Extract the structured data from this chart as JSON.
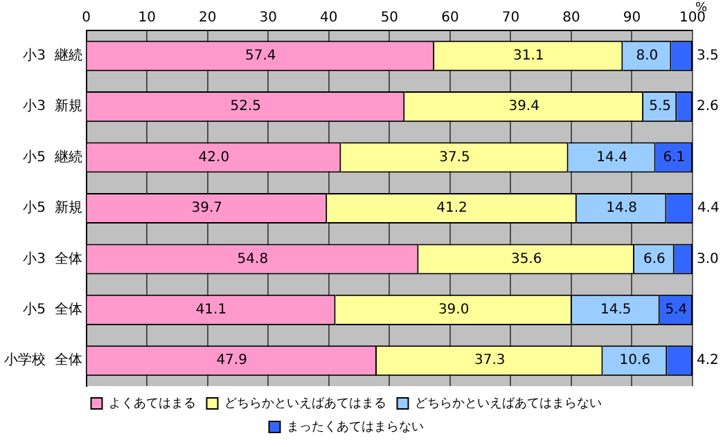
{
  "chart_data": {
    "type": "bar",
    "orientation": "horizontal",
    "stacked": true,
    "xlabel": "%",
    "categories": [
      "小3  継続",
      "小3  新規",
      "小5  継続",
      "小5  新規",
      "小3  全体",
      "小5  全体",
      "小学校  全体"
    ],
    "series": [
      {
        "name": "よくあてはまる",
        "color": "#ff99cc",
        "values": [
          57.4,
          52.5,
          42.0,
          39.7,
          54.8,
          41.1,
          47.9
        ],
        "value_labels": [
          "57.4",
          "52.5",
          "42.0",
          "39.7",
          "54.8",
          "41.1",
          "47.9"
        ]
      },
      {
        "name": "どちらかといえばあてはまる",
        "color": "#ffff99",
        "values": [
          31.1,
          39.4,
          37.5,
          41.2,
          35.6,
          39.0,
          37.3
        ],
        "value_labels": [
          "31.1",
          "39.4",
          "37.5",
          "41.2",
          "35.6",
          "39.0",
          "37.3"
        ]
      },
      {
        "name": "どちらかといえばあてはまらない",
        "color": "#99ccff",
        "values": [
          8.0,
          5.5,
          14.4,
          14.8,
          6.6,
          14.5,
          10.6
        ],
        "value_labels": [
          "8.0",
          "5.5",
          "14.4",
          "14.8",
          "6.6",
          "14.5",
          "10.6"
        ]
      },
      {
        "name": "まったくあてはまらない",
        "color": "#3366ff",
        "values": [
          3.5,
          2.6,
          6.1,
          4.4,
          3.0,
          5.4,
          4.2
        ],
        "value_labels": [
          "3.5",
          "2.6",
          "6.1",
          "4.4",
          "3.0",
          "5.4",
          "4.2"
        ]
      }
    ],
    "xlim": [
      0,
      100
    ],
    "xticks": [
      0,
      10,
      20,
      30,
      40,
      50,
      60,
      70,
      80,
      90,
      100
    ],
    "grid": "x",
    "legend": "bottom"
  }
}
